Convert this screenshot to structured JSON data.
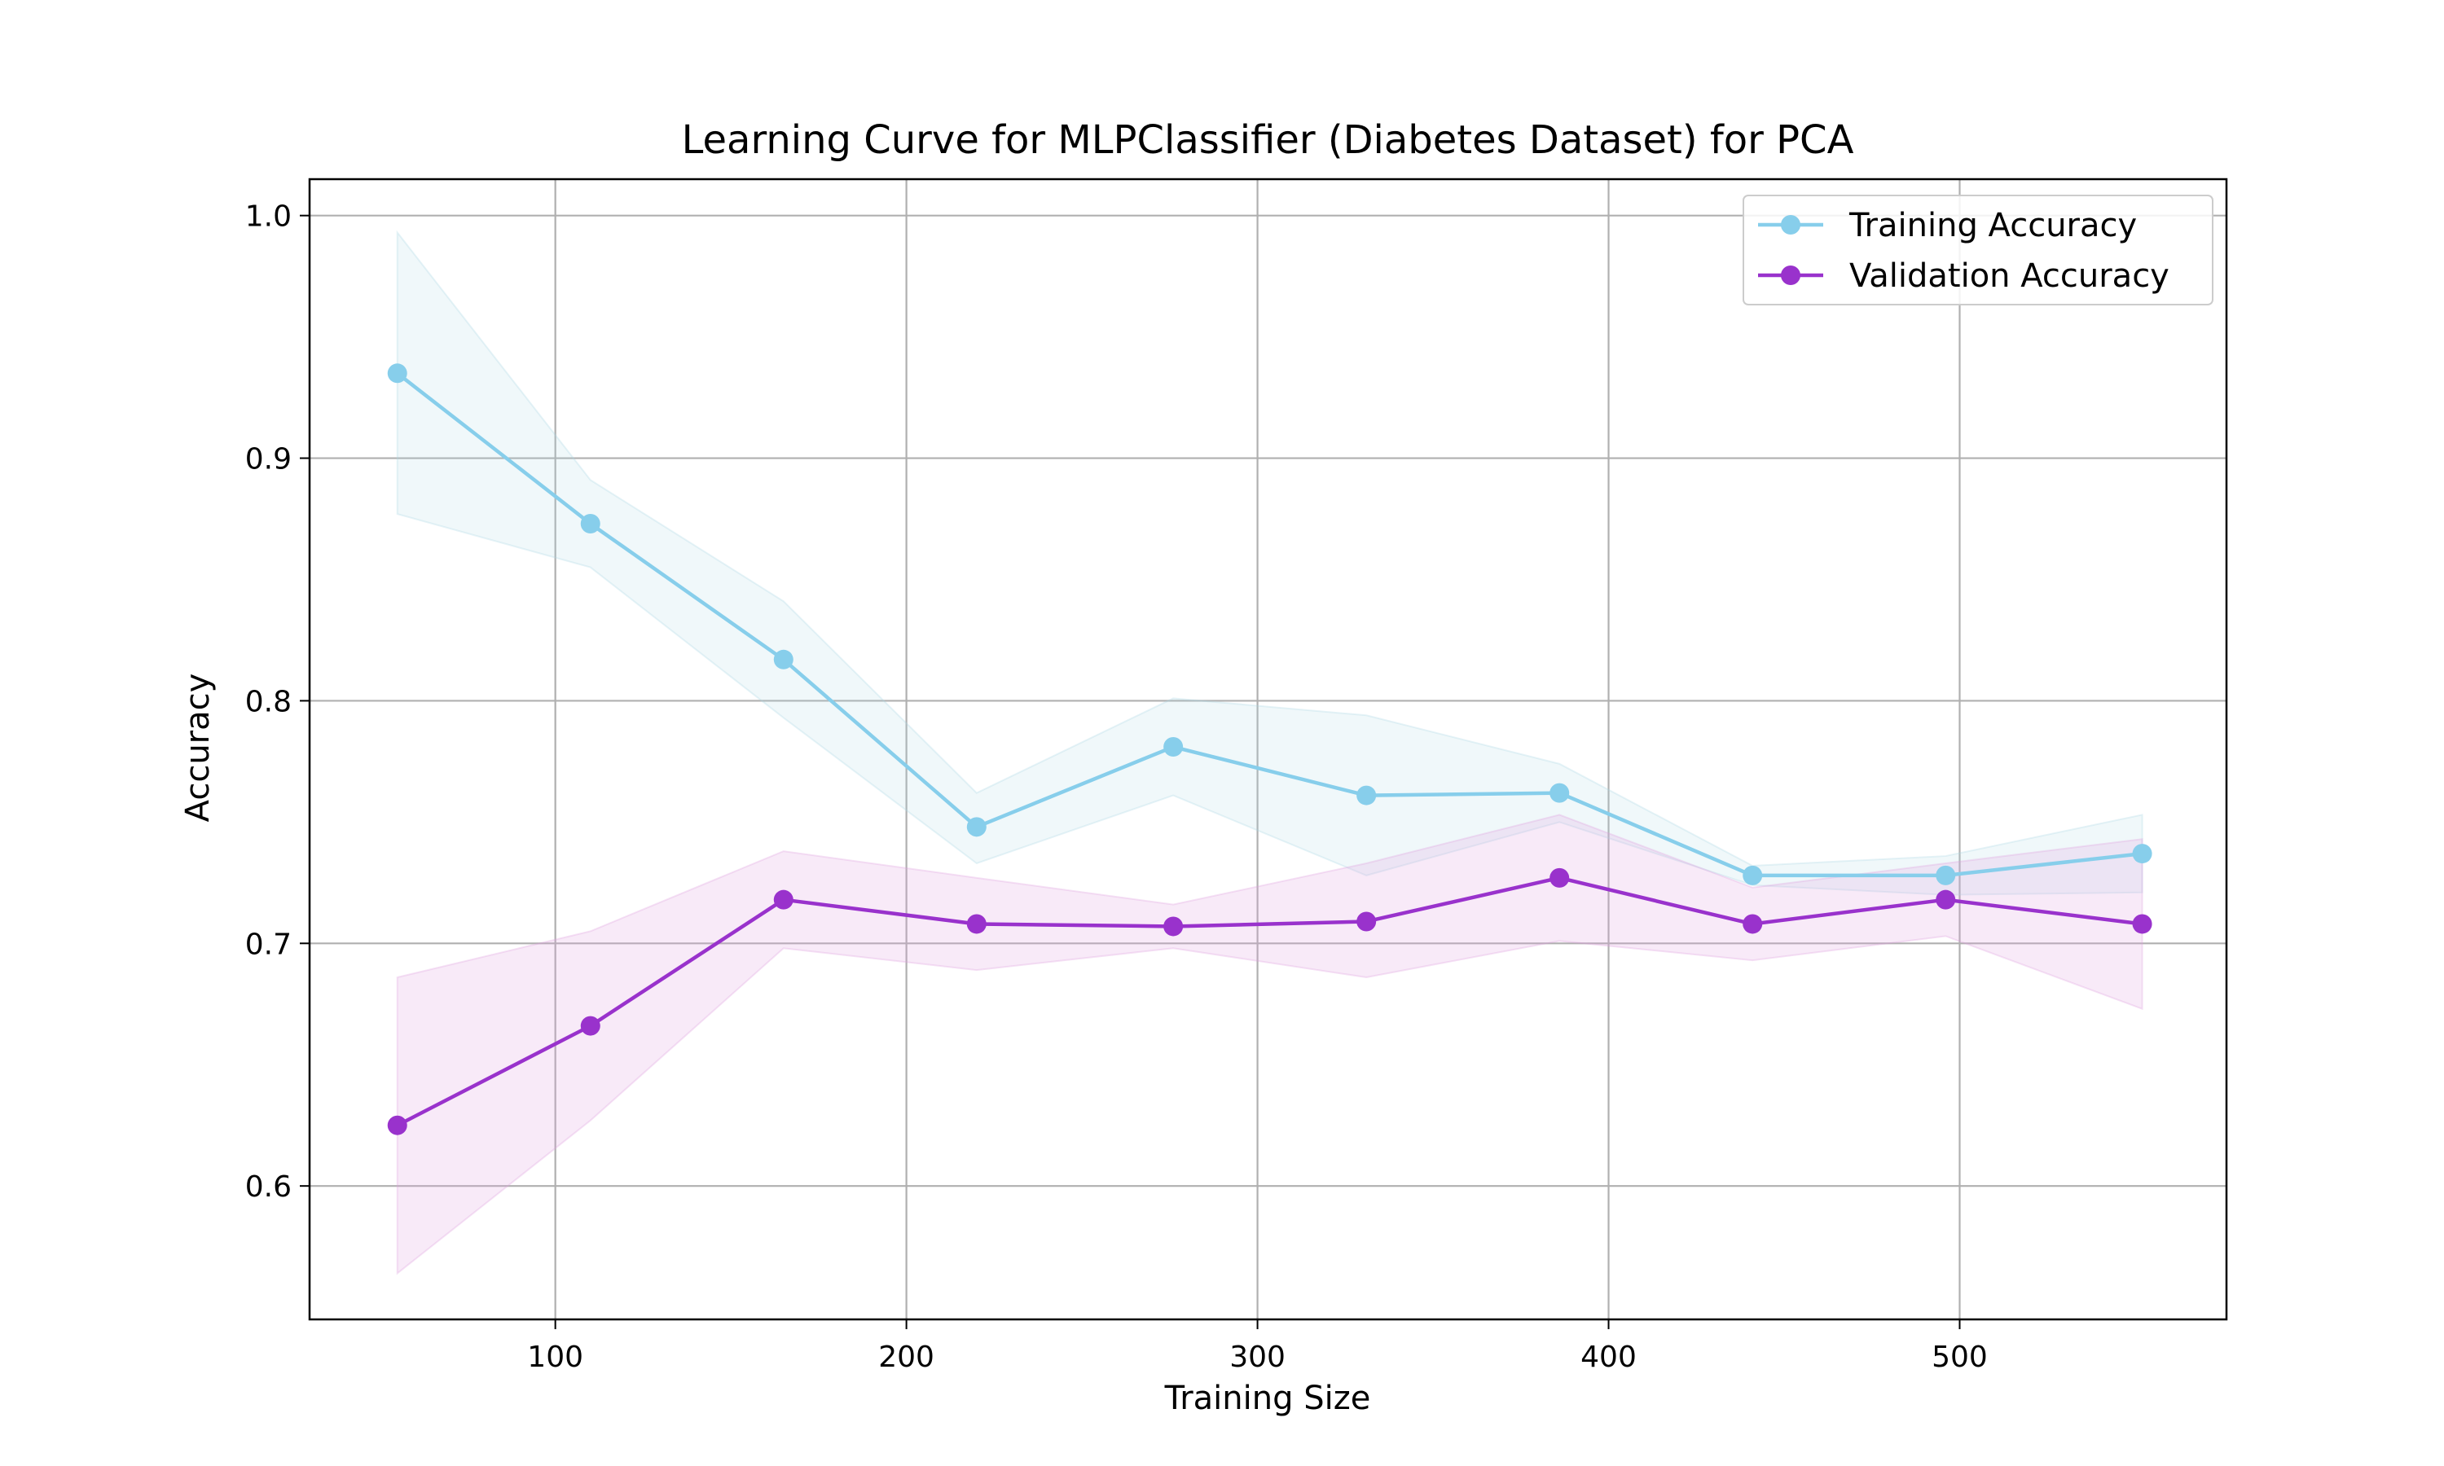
{
  "chart_data": {
    "type": "line",
    "title": "Learning Curve for MLPClassifier (Diabetes Dataset) for PCA",
    "xlabel": "Training Size",
    "ylabel": "Accuracy",
    "xlim": [
      30,
      576
    ],
    "ylim": [
      0.545,
      1.015
    ],
    "xticks": [
      100,
      200,
      300,
      400,
      500
    ],
    "xtick_labels": [
      "100",
      "200",
      "300",
      "400",
      "500"
    ],
    "yticks": [
      0.6,
      0.7,
      0.8,
      0.9,
      1.0
    ],
    "ytick_labels": [
      "0.6",
      "0.7",
      "0.8",
      "0.9",
      "1.0"
    ],
    "grid": true,
    "legend_position": "top-right",
    "x": [
      55,
      110,
      165,
      220,
      276,
      331,
      386,
      441,
      496,
      552
    ],
    "series": [
      {
        "name": "Training Accuracy",
        "color": "#87ceeb",
        "marker": "circle",
        "values": [
          0.935,
          0.873,
          0.817,
          0.748,
          0.781,
          0.761,
          0.762,
          0.728,
          0.728,
          0.737
        ],
        "band_upper": [
          0.993,
          0.891,
          0.841,
          0.762,
          0.801,
          0.794,
          0.774,
          0.732,
          0.736,
          0.753
        ],
        "band_lower": [
          0.877,
          0.855,
          0.793,
          0.733,
          0.761,
          0.728,
          0.75,
          0.724,
          0.72,
          0.721
        ],
        "band_color": "#add8e6"
      },
      {
        "name": "Validation Accuracy",
        "color": "#9932cc",
        "marker": "circle",
        "values": [
          0.625,
          0.666,
          0.718,
          0.708,
          0.707,
          0.709,
          0.727,
          0.708,
          0.718,
          0.708
        ],
        "band_upper": [
          0.686,
          0.705,
          0.738,
          0.727,
          0.716,
          0.733,
          0.753,
          0.723,
          0.733,
          0.743
        ],
        "band_lower": [
          0.564,
          0.627,
          0.698,
          0.689,
          0.698,
          0.686,
          0.701,
          0.693,
          0.703,
          0.673
        ],
        "band_color": "#dda0dd"
      }
    ]
  }
}
